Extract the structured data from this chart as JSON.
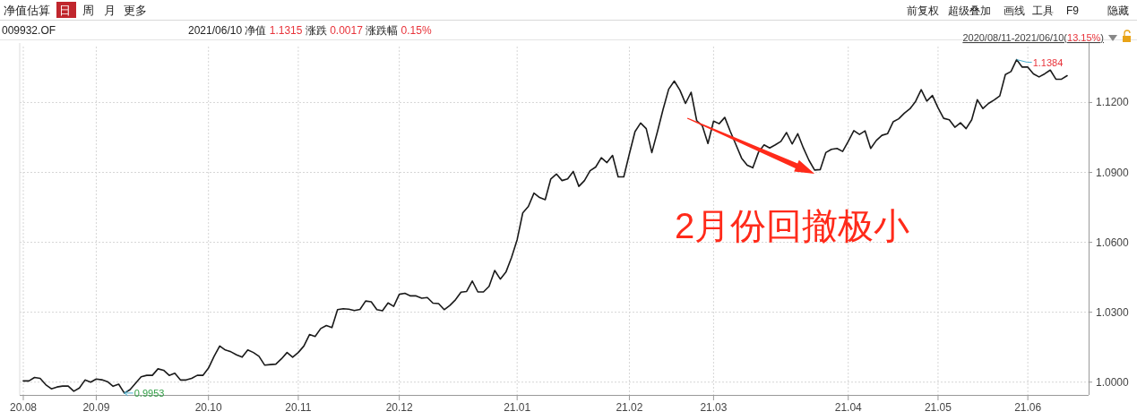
{
  "chart_data": {
    "type": "line",
    "title": "009932.OF",
    "subtitle": "2021/06/10 净值 1.1315 涨跌 0.0017 涨跌幅 0.15%",
    "annotations": [
      "净值估算",
      "日",
      "周",
      "月",
      "更多",
      "前复权",
      "超级叠加",
      "画线",
      "工具",
      "F9",
      "隐藏",
      "2020/08/11-2021/06/10(13.15%)",
      "0.9953",
      "1.1384",
      "2月份回撤极小"
    ],
    "categories": [
      "20.08",
      null,
      null,
      null,
      null,
      null,
      null,
      null,
      null,
      null,
      null,
      null,
      null,
      "20.09",
      null,
      null,
      null,
      null,
      null,
      null,
      null,
      null,
      null,
      null,
      null,
      null,
      null,
      null,
      null,
      null,
      null,
      null,
      null,
      "20.10",
      null,
      null,
      null,
      null,
      null,
      null,
      null,
      null,
      null,
      null,
      null,
      null,
      null,
      null,
      null,
      "20.11",
      null,
      null,
      null,
      null,
      null,
      null,
      null,
      null,
      null,
      null,
      null,
      null,
      null,
      null,
      null,
      null,
      null,
      "20.12",
      null,
      null,
      null,
      null,
      null,
      null,
      null,
      null,
      null,
      null,
      null,
      null,
      null,
      null,
      null,
      null,
      null,
      null,
      null,
      null,
      "21.01",
      null,
      null,
      null,
      null,
      null,
      null,
      null,
      null,
      null,
      null,
      null,
      null,
      null,
      null,
      null,
      null,
      null,
      null,
      null,
      "21.02",
      null,
      null,
      null,
      null,
      null,
      null,
      null,
      null,
      null,
      null,
      null,
      null,
      null,
      null,
      "21.03",
      null,
      null,
      null,
      null,
      null,
      null,
      null,
      null,
      null,
      null,
      null,
      null,
      null,
      null,
      null,
      null,
      null,
      null,
      null,
      null,
      null,
      null,
      null,
      "21.04",
      null,
      null,
      null,
      null,
      null,
      null,
      null,
      null,
      null,
      null,
      null,
      null,
      null,
      null,
      null,
      "21.05",
      null,
      null,
      null,
      null,
      null,
      null,
      null,
      null,
      null,
      null,
      null,
      null,
      null,
      null,
      null,
      "21.06",
      null,
      null,
      null,
      null,
      null,
      null,
      null
    ],
    "series": [
      {
        "color": "#1a1a1a",
        "values": [
          1.0005,
          1.0005,
          1.002,
          1.0016,
          0.9989,
          0.9971,
          0.9979,
          0.9983,
          0.9983,
          0.9961,
          0.9975,
          1.0009,
          1.0,
          1.0013,
          1.001,
          1.0002,
          0.9982,
          0.9991,
          0.9953,
          0.9967,
          0.9995,
          1.0023,
          1.0029,
          1.0029,
          1.0057,
          1.0051,
          1.0029,
          1.0038,
          1.0009,
          1.0009,
          1.0016,
          1.0029,
          1.0029,
          1.006,
          1.0111,
          1.0155,
          1.0138,
          1.013,
          1.0117,
          1.0107,
          1.0138,
          1.0127,
          1.0111,
          1.0073,
          1.0075,
          1.0077,
          1.01,
          1.0127,
          1.0107,
          1.0127,
          1.0155,
          1.0204,
          1.0196,
          1.023,
          1.0243,
          1.0234,
          1.0311,
          1.0315,
          1.0313,
          1.0307,
          1.0312,
          1.0348,
          1.0345,
          1.0311,
          1.0306,
          1.034,
          1.0325,
          1.0377,
          1.0381,
          1.037,
          1.037,
          1.036,
          1.0363,
          1.0339,
          1.0337,
          1.0311,
          1.0329,
          1.0353,
          1.0386,
          1.0389,
          1.0434,
          1.0387,
          1.0387,
          1.0411,
          1.0479,
          1.0442,
          1.0472,
          1.0535,
          1.0611,
          1.0726,
          1.0754,
          1.0811,
          1.0792,
          1.0783,
          1.0872,
          1.0893,
          1.0865,
          1.0872,
          1.0904,
          1.084,
          1.0865,
          1.0907,
          1.0923,
          1.0963,
          1.0942,
          1.0973,
          1.0881,
          1.0881,
          1.098,
          1.1075,
          1.1112,
          1.1088,
          1.0985,
          1.1075,
          1.117,
          1.1257,
          1.1292,
          1.1253,
          1.1196,
          1.1244,
          1.1122,
          1.11,
          1.1024,
          1.112,
          1.1109,
          1.1136,
          1.1075,
          1.1018,
          1.0961,
          1.0931,
          1.092,
          1.0986,
          1.1018,
          1.1005,
          1.1018,
          1.1033,
          1.1071,
          1.1022,
          1.1066,
          1.1005,
          1.0952,
          1.091,
          1.0912,
          1.0985,
          1.0999,
          1.1003,
          1.099,
          1.1033,
          1.1079,
          1.1063,
          1.1078,
          1.1003,
          1.1037,
          1.1059,
          1.1066,
          1.1117,
          1.113,
          1.1154,
          1.1173,
          1.1205,
          1.1255,
          1.1206,
          1.123,
          1.1177,
          1.1132,
          1.1126,
          1.1094,
          1.1113,
          1.1088,
          1.1126,
          1.1212,
          1.1174,
          1.1196,
          1.1211,
          1.1228,
          1.132,
          1.1333,
          1.1384,
          1.1352,
          1.1352,
          1.1323,
          1.131,
          1.1323,
          1.1339,
          1.13,
          1.13,
          1.1315
        ]
      }
    ],
    "ylim": [
      0.9945,
      1.144
    ],
    "yticks": [
      {
        "value": 1.0,
        "label": "1.0000"
      },
      {
        "value": 1.03,
        "label": "1.0300"
      },
      {
        "value": 1.06,
        "label": "1.0600"
      },
      {
        "value": 1.09,
        "label": "1.0900"
      },
      {
        "value": 1.12,
        "label": "1.1200"
      }
    ],
    "grid": true,
    "marker": "none",
    "line_style": "solid"
  }
}
